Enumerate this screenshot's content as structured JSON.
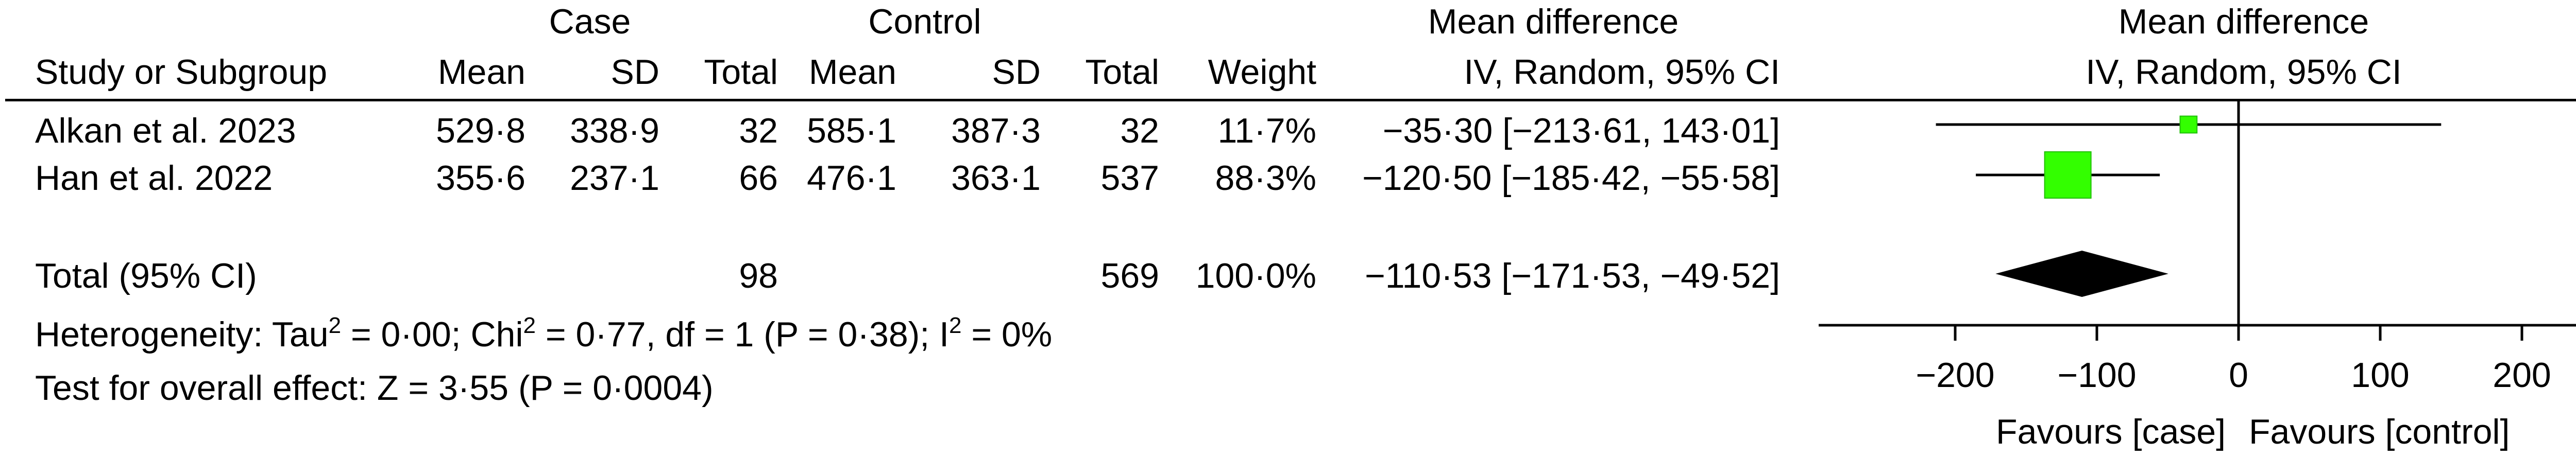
{
  "header": {
    "case_group": "Case",
    "control_group": "Control",
    "md_title": "Mean difference",
    "study_col": "Study or Subgroup",
    "mean_col": "Mean",
    "sd_col": "SD",
    "total_col": "Total",
    "weight_col": "Weight",
    "md_method": "IV, Random, 95% CI"
  },
  "rows": [
    {
      "study": "Alkan et al. 2023",
      "case_mean": "529·8",
      "case_sd": "338·9",
      "case_total": "32",
      "ctrl_mean": "585·1",
      "ctrl_sd": "387·3",
      "ctrl_total": "32",
      "weight": "11·7%",
      "ci_text": "−35·30 [−213·61, 143·01]"
    },
    {
      "study": "Han et al. 2022",
      "case_mean": "355·6",
      "case_sd": "237·1",
      "case_total": "66",
      "ctrl_mean": "476·1",
      "ctrl_sd": "363·1",
      "ctrl_total": "537",
      "weight": "88·3%",
      "ci_text": "−120·50 [−185·42, −55·58]"
    }
  ],
  "total_row": {
    "label": "Total (95% CI)",
    "case_total": "98",
    "ctrl_total": "569",
    "weight": "100·0%",
    "ci_text": "−110·53 [−171·53, −49·52]"
  },
  "heterogeneity": {
    "prefix": "Heterogeneity: Tau",
    "tau_rest": " = 0·00; Chi",
    "chi_rest": " = 0·77, df = 1 (P = 0·38); I",
    "i_rest": " = 0%",
    "sup": "2"
  },
  "overall_effect": "Test for overall effect: Z = 3·55 (P = 0·0004)",
  "plot_header": {
    "title": "Mean difference",
    "method": "IV, Random, 95% CI"
  },
  "chart_data": {
    "type": "forest",
    "xlim": [
      -200,
      200
    ],
    "ticks": [
      -200,
      -100,
      0,
      100,
      200
    ],
    "tick_labels": [
      "−200",
      "−100",
      "0",
      "100",
      "200"
    ],
    "favours_left": "Favours [case]",
    "favours_right": "Favours [control]",
    "marker_color": "#33ff00",
    "studies": [
      {
        "name": "Alkan et al. 2023",
        "md": -35.3,
        "lo": -213.61,
        "hi": 143.01,
        "weight": 11.7
      },
      {
        "name": "Han et al. 2022",
        "md": -120.5,
        "lo": -185.42,
        "hi": -55.58,
        "weight": 88.3
      }
    ],
    "pooled": {
      "md": -110.53,
      "lo": -171.53,
      "hi": -49.52
    }
  }
}
